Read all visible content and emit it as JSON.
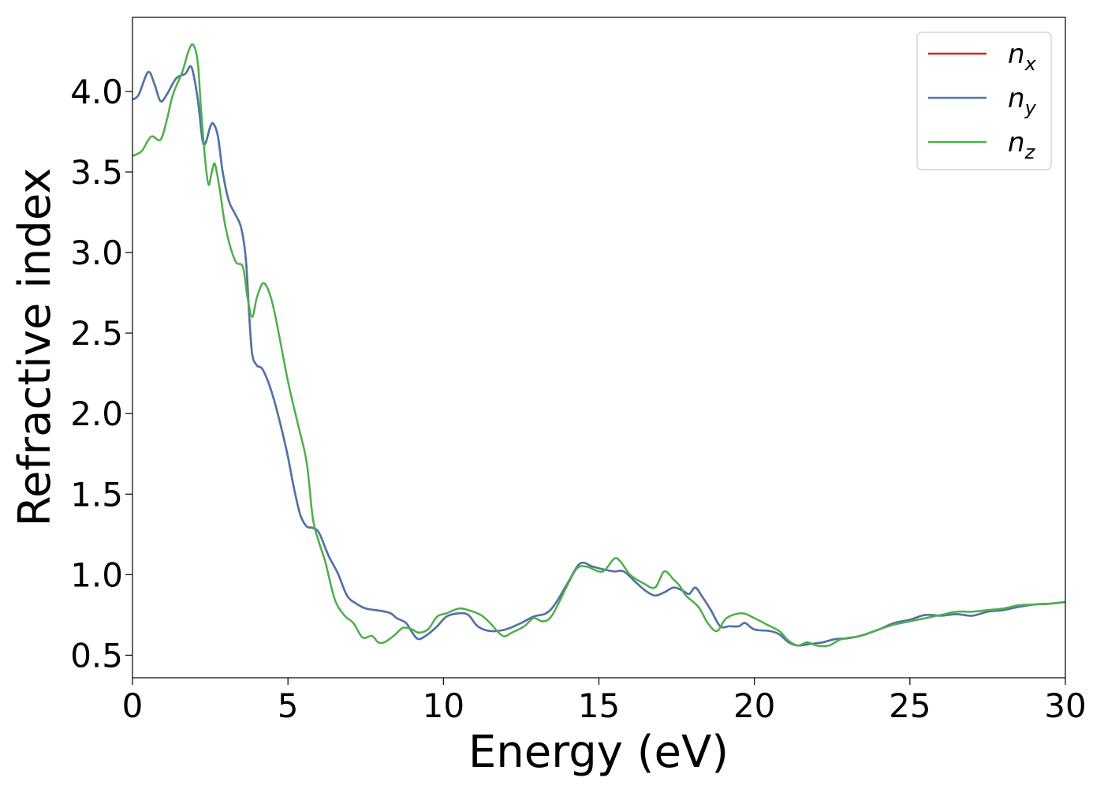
{
  "chart_data": {
    "type": "line",
    "xlabel": "Energy (eV)",
    "ylabel": "Refractive index",
    "xlim": [
      0,
      30
    ],
    "ylim": [
      0.36,
      4.46
    ],
    "xticks": [
      0,
      5,
      10,
      15,
      20,
      25,
      30
    ],
    "yticks": [
      0.5,
      1.0,
      1.5,
      2.0,
      2.5,
      3.0,
      3.5,
      4.0
    ],
    "xtick_labels": [
      "0",
      "5",
      "10",
      "15",
      "20",
      "25",
      "30"
    ],
    "ytick_labels": [
      "0.5",
      "1.0",
      "1.5",
      "2.0",
      "2.5",
      "3.0",
      "3.5",
      "4.0"
    ],
    "grid": false,
    "legend_position": "top-right",
    "series": [
      {
        "name": "n",
        "subscript": "x",
        "color": "#e41a1c",
        "points": [
          [
            0,
            3.95
          ],
          [
            0.2,
            3.98
          ],
          [
            0.5,
            4.12
          ],
          [
            0.7,
            4.05
          ],
          [
            0.9,
            3.94
          ],
          [
            1.1,
            3.98
          ],
          [
            1.4,
            4.08
          ],
          [
            1.7,
            4.11
          ],
          [
            1.9,
            4.15
          ],
          [
            2.1,
            3.95
          ],
          [
            2.25,
            3.7
          ],
          [
            2.35,
            3.68
          ],
          [
            2.5,
            3.78
          ],
          [
            2.6,
            3.8
          ],
          [
            2.75,
            3.72
          ],
          [
            2.9,
            3.5
          ],
          [
            3.1,
            3.32
          ],
          [
            3.3,
            3.24
          ],
          [
            3.5,
            3.15
          ],
          [
            3.65,
            2.95
          ],
          [
            3.75,
            2.62
          ],
          [
            3.85,
            2.37
          ],
          [
            4.0,
            2.3
          ],
          [
            4.2,
            2.27
          ],
          [
            4.5,
            2.12
          ],
          [
            4.8,
            1.9
          ],
          [
            5.0,
            1.73
          ],
          [
            5.2,
            1.53
          ],
          [
            5.4,
            1.37
          ],
          [
            5.6,
            1.3
          ],
          [
            5.8,
            1.29
          ],
          [
            6.0,
            1.26
          ],
          [
            6.3,
            1.12
          ],
          [
            6.6,
            1.01
          ],
          [
            6.9,
            0.87
          ],
          [
            7.2,
            0.82
          ],
          [
            7.5,
            0.79
          ],
          [
            8.0,
            0.775
          ],
          [
            8.3,
            0.76
          ],
          [
            8.5,
            0.73
          ],
          [
            8.8,
            0.7
          ],
          [
            9.0,
            0.64
          ],
          [
            9.2,
            0.6
          ],
          [
            9.5,
            0.63
          ],
          [
            9.8,
            0.68
          ],
          [
            10.1,
            0.74
          ],
          [
            10.5,
            0.76
          ],
          [
            10.8,
            0.75
          ],
          [
            11.1,
            0.68
          ],
          [
            11.5,
            0.65
          ],
          [
            12.0,
            0.66
          ],
          [
            12.5,
            0.7
          ],
          [
            12.9,
            0.74
          ],
          [
            13.3,
            0.76
          ],
          [
            13.6,
            0.82
          ],
          [
            14.0,
            0.95
          ],
          [
            14.4,
            1.07
          ],
          [
            14.8,
            1.05
          ],
          [
            15.2,
            1.03
          ],
          [
            15.5,
            1.02
          ],
          [
            15.8,
            1.02
          ],
          [
            16.2,
            0.95
          ],
          [
            16.5,
            0.9
          ],
          [
            16.8,
            0.87
          ],
          [
            17.1,
            0.89
          ],
          [
            17.4,
            0.92
          ],
          [
            17.7,
            0.9
          ],
          [
            17.9,
            0.88
          ],
          [
            18.1,
            0.92
          ],
          [
            18.3,
            0.87
          ],
          [
            18.6,
            0.78
          ],
          [
            18.9,
            0.68
          ],
          [
            19.2,
            0.68
          ],
          [
            19.5,
            0.68
          ],
          [
            19.7,
            0.7
          ],
          [
            20.0,
            0.66
          ],
          [
            20.5,
            0.65
          ],
          [
            20.8,
            0.63
          ],
          [
            21.1,
            0.58
          ],
          [
            21.4,
            0.56
          ],
          [
            21.8,
            0.57
          ],
          [
            22.2,
            0.58
          ],
          [
            22.6,
            0.6
          ],
          [
            23.0,
            0.605
          ],
          [
            23.5,
            0.625
          ],
          [
            24.0,
            0.66
          ],
          [
            24.5,
            0.7
          ],
          [
            25.0,
            0.72
          ],
          [
            25.5,
            0.75
          ],
          [
            26.0,
            0.745
          ],
          [
            26.5,
            0.755
          ],
          [
            27.0,
            0.745
          ],
          [
            27.5,
            0.77
          ],
          [
            28.0,
            0.78
          ],
          [
            28.5,
            0.8
          ],
          [
            29.0,
            0.815
          ],
          [
            29.5,
            0.82
          ],
          [
            30.0,
            0.83
          ]
        ]
      },
      {
        "name": "n",
        "subscript": "y",
        "color": "#4a77ab",
        "points": [
          [
            0,
            3.95
          ],
          [
            0.2,
            3.98
          ],
          [
            0.5,
            4.12
          ],
          [
            0.7,
            4.05
          ],
          [
            0.9,
            3.94
          ],
          [
            1.1,
            3.98
          ],
          [
            1.4,
            4.08
          ],
          [
            1.7,
            4.11
          ],
          [
            1.9,
            4.15
          ],
          [
            2.1,
            3.95
          ],
          [
            2.25,
            3.7
          ],
          [
            2.35,
            3.68
          ],
          [
            2.5,
            3.78
          ],
          [
            2.6,
            3.8
          ],
          [
            2.75,
            3.72
          ],
          [
            2.9,
            3.5
          ],
          [
            3.1,
            3.32
          ],
          [
            3.3,
            3.24
          ],
          [
            3.5,
            3.15
          ],
          [
            3.65,
            2.95
          ],
          [
            3.75,
            2.62
          ],
          [
            3.85,
            2.37
          ],
          [
            4.0,
            2.3
          ],
          [
            4.2,
            2.27
          ],
          [
            4.5,
            2.12
          ],
          [
            4.8,
            1.9
          ],
          [
            5.0,
            1.73
          ],
          [
            5.2,
            1.53
          ],
          [
            5.4,
            1.37
          ],
          [
            5.6,
            1.3
          ],
          [
            5.8,
            1.29
          ],
          [
            6.0,
            1.26
          ],
          [
            6.3,
            1.12
          ],
          [
            6.6,
            1.01
          ],
          [
            6.9,
            0.87
          ],
          [
            7.2,
            0.82
          ],
          [
            7.5,
            0.79
          ],
          [
            8.0,
            0.775
          ],
          [
            8.3,
            0.76
          ],
          [
            8.5,
            0.73
          ],
          [
            8.8,
            0.7
          ],
          [
            9.0,
            0.64
          ],
          [
            9.2,
            0.6
          ],
          [
            9.5,
            0.63
          ],
          [
            9.8,
            0.68
          ],
          [
            10.1,
            0.74
          ],
          [
            10.5,
            0.76
          ],
          [
            10.8,
            0.75
          ],
          [
            11.1,
            0.68
          ],
          [
            11.5,
            0.65
          ],
          [
            12.0,
            0.66
          ],
          [
            12.5,
            0.7
          ],
          [
            12.9,
            0.74
          ],
          [
            13.3,
            0.76
          ],
          [
            13.6,
            0.82
          ],
          [
            14.0,
            0.95
          ],
          [
            14.4,
            1.07
          ],
          [
            14.8,
            1.05
          ],
          [
            15.2,
            1.03
          ],
          [
            15.5,
            1.02
          ],
          [
            15.8,
            1.02
          ],
          [
            16.2,
            0.95
          ],
          [
            16.5,
            0.9
          ],
          [
            16.8,
            0.87
          ],
          [
            17.1,
            0.89
          ],
          [
            17.4,
            0.92
          ],
          [
            17.7,
            0.9
          ],
          [
            17.9,
            0.88
          ],
          [
            18.1,
            0.92
          ],
          [
            18.3,
            0.87
          ],
          [
            18.6,
            0.78
          ],
          [
            18.9,
            0.68
          ],
          [
            19.2,
            0.68
          ],
          [
            19.5,
            0.68
          ],
          [
            19.7,
            0.7
          ],
          [
            20.0,
            0.66
          ],
          [
            20.5,
            0.65
          ],
          [
            20.8,
            0.63
          ],
          [
            21.1,
            0.58
          ],
          [
            21.4,
            0.56
          ],
          [
            21.8,
            0.57
          ],
          [
            22.2,
            0.58
          ],
          [
            22.6,
            0.6
          ],
          [
            23.0,
            0.605
          ],
          [
            23.5,
            0.625
          ],
          [
            24.0,
            0.66
          ],
          [
            24.5,
            0.7
          ],
          [
            25.0,
            0.72
          ],
          [
            25.5,
            0.75
          ],
          [
            26.0,
            0.745
          ],
          [
            26.5,
            0.755
          ],
          [
            27.0,
            0.745
          ],
          [
            27.5,
            0.77
          ],
          [
            28.0,
            0.78
          ],
          [
            28.5,
            0.8
          ],
          [
            29.0,
            0.815
          ],
          [
            29.5,
            0.82
          ],
          [
            30.0,
            0.83
          ]
        ]
      },
      {
        "name": "n",
        "subscript": "z",
        "color": "#4daf4a",
        "points": [
          [
            0,
            3.6
          ],
          [
            0.3,
            3.63
          ],
          [
            0.6,
            3.72
          ],
          [
            0.9,
            3.7
          ],
          [
            1.1,
            3.82
          ],
          [
            1.3,
            3.98
          ],
          [
            1.6,
            4.12
          ],
          [
            1.8,
            4.25
          ],
          [
            1.95,
            4.29
          ],
          [
            2.1,
            4.18
          ],
          [
            2.2,
            3.9
          ],
          [
            2.35,
            3.55
          ],
          [
            2.45,
            3.42
          ],
          [
            2.55,
            3.5
          ],
          [
            2.65,
            3.55
          ],
          [
            2.8,
            3.4
          ],
          [
            3.0,
            3.15
          ],
          [
            3.3,
            2.95
          ],
          [
            3.55,
            2.91
          ],
          [
            3.7,
            2.72
          ],
          [
            3.85,
            2.6
          ],
          [
            4.0,
            2.72
          ],
          [
            4.2,
            2.81
          ],
          [
            4.4,
            2.75
          ],
          [
            4.6,
            2.6
          ],
          [
            5.0,
            2.2
          ],
          [
            5.3,
            1.95
          ],
          [
            5.6,
            1.7
          ],
          [
            5.8,
            1.35
          ],
          [
            6.0,
            1.2
          ],
          [
            6.2,
            1.08
          ],
          [
            6.5,
            0.85
          ],
          [
            6.8,
            0.75
          ],
          [
            7.1,
            0.7
          ],
          [
            7.4,
            0.61
          ],
          [
            7.7,
            0.62
          ],
          [
            7.9,
            0.58
          ],
          [
            8.1,
            0.58
          ],
          [
            8.4,
            0.62
          ],
          [
            8.7,
            0.67
          ],
          [
            9.0,
            0.66
          ],
          [
            9.2,
            0.64
          ],
          [
            9.5,
            0.66
          ],
          [
            9.8,
            0.74
          ],
          [
            10.1,
            0.76
          ],
          [
            10.5,
            0.79
          ],
          [
            10.8,
            0.78
          ],
          [
            11.2,
            0.75
          ],
          [
            11.5,
            0.7
          ],
          [
            11.9,
            0.62
          ],
          [
            12.2,
            0.64
          ],
          [
            12.6,
            0.68
          ],
          [
            12.9,
            0.73
          ],
          [
            13.2,
            0.71
          ],
          [
            13.5,
            0.75
          ],
          [
            14.0,
            0.94
          ],
          [
            14.3,
            1.04
          ],
          [
            14.6,
            1.05
          ],
          [
            15.0,
            1.02
          ],
          [
            15.2,
            1.03
          ],
          [
            15.5,
            1.1
          ],
          [
            15.7,
            1.08
          ],
          [
            16.0,
            1.0
          ],
          [
            16.4,
            0.95
          ],
          [
            16.8,
            0.92
          ],
          [
            17.1,
            1.02
          ],
          [
            17.4,
            0.97
          ],
          [
            17.6,
            0.93
          ],
          [
            17.8,
            0.87
          ],
          [
            18.2,
            0.8
          ],
          [
            18.5,
            0.7
          ],
          [
            18.8,
            0.65
          ],
          [
            19.1,
            0.73
          ],
          [
            19.6,
            0.76
          ],
          [
            20.0,
            0.73
          ],
          [
            20.4,
            0.69
          ],
          [
            20.8,
            0.65
          ],
          [
            21.1,
            0.59
          ],
          [
            21.4,
            0.56
          ],
          [
            21.7,
            0.58
          ],
          [
            22.0,
            0.56
          ],
          [
            22.4,
            0.56
          ],
          [
            22.8,
            0.6
          ],
          [
            23.4,
            0.62
          ],
          [
            24.0,
            0.66
          ],
          [
            24.5,
            0.69
          ],
          [
            25.0,
            0.71
          ],
          [
            25.5,
            0.73
          ],
          [
            26.0,
            0.75
          ],
          [
            26.5,
            0.77
          ],
          [
            27.0,
            0.77
          ],
          [
            27.5,
            0.78
          ],
          [
            28.0,
            0.79
          ],
          [
            28.5,
            0.81
          ],
          [
            29.0,
            0.815
          ],
          [
            29.5,
            0.82
          ],
          [
            30.0,
            0.83
          ]
        ]
      }
    ]
  }
}
